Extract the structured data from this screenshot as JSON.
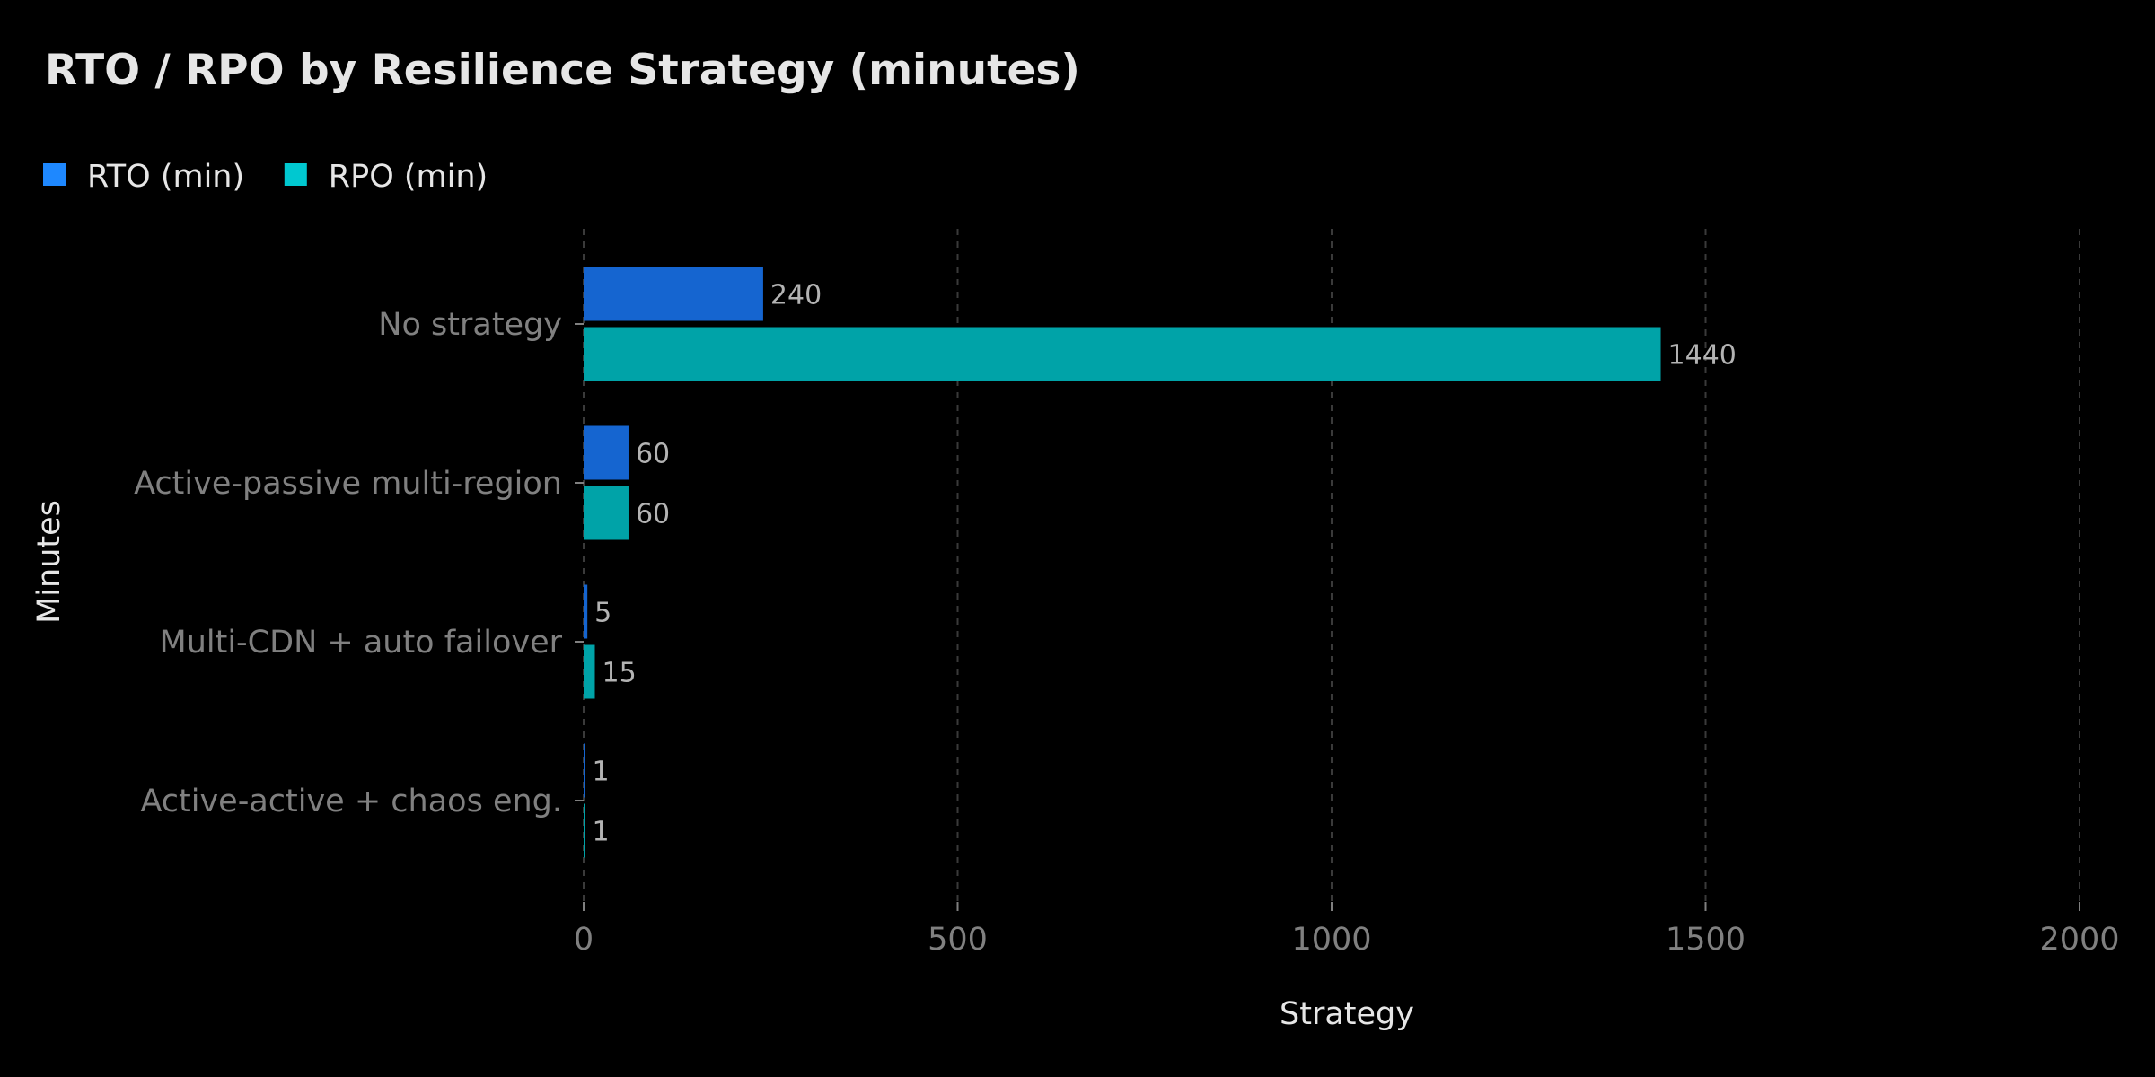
{
  "chart_data": {
    "type": "bar",
    "orientation": "horizontal",
    "title": "RTO / RPO by Resilience Strategy (minutes)",
    "xlabel": "Strategy",
    "ylabel": "Minutes",
    "categories": [
      "No strategy",
      "Active-passive multi-region",
      "Multi-CDN + auto failover",
      "Active-active + chaos eng."
    ],
    "series": [
      {
        "name": "RTO (min)",
        "values": [
          240,
          60,
          5,
          1
        ],
        "color": "#1e88ff",
        "bar_color": "#1565d0"
      },
      {
        "name": "RPO (min)",
        "values": [
          1440,
          60,
          15,
          1
        ],
        "color": "#00c8d0",
        "bar_color": "#00a3a8"
      }
    ],
    "value_labels": [
      [
        "240",
        "60",
        "5",
        "1"
      ],
      [
        "1440",
        "60",
        "15",
        "1"
      ]
    ],
    "xlim": [
      0,
      2000
    ],
    "xticks": [
      0,
      500,
      1000,
      1500,
      2000
    ],
    "xtick_labels": [
      "0",
      "500",
      "1000",
      "1500",
      "2000"
    ],
    "grid": true,
    "grid_axis": "x",
    "legend_position": "top-left",
    "colors": {
      "background": "#000000",
      "title": "#e6e6e6",
      "legend_text": "#e6e6e6",
      "category_label": "#808080",
      "tick_label": "#808080",
      "axis_title": "#e6e6e6",
      "value_label": "#b3b3b3",
      "grid": "#3a3a3a",
      "tick": "#808080"
    }
  }
}
